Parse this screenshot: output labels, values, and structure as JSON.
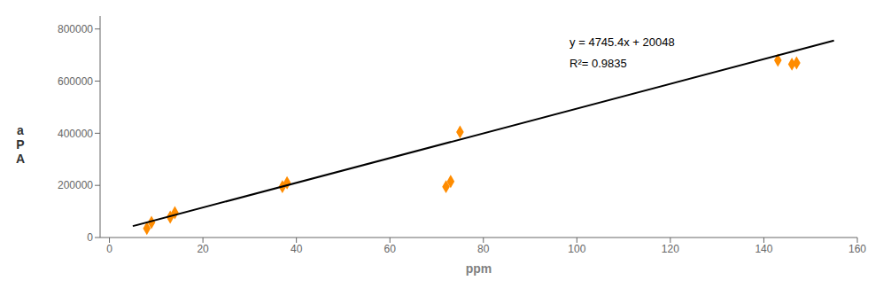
{
  "chart_data": {
    "type": "scatter",
    "xlabel": "ppm",
    "ylabel": "a\nP\nA",
    "xlim": [
      -2,
      160
    ],
    "ylim": [
      0,
      850000
    ],
    "xticks": [
      0,
      20,
      40,
      60,
      80,
      100,
      120,
      140,
      160
    ],
    "yticks": [
      0,
      200000,
      400000,
      600000,
      800000
    ],
    "grid": false,
    "series": [
      {
        "type": "scatter",
        "x": [
          8,
          9,
          13,
          14,
          37,
          38,
          72,
          73,
          75,
          143,
          146,
          147
        ],
        "values": [
          35000,
          58000,
          78000,
          95000,
          195000,
          210000,
          195000,
          215000,
          405000,
          680000,
          665000,
          670000
        ],
        "color": "#FF8C00",
        "marker": "diamond"
      },
      {
        "type": "line",
        "x": [
          5,
          155
        ],
        "values": [
          43775,
          755585
        ],
        "color": "black",
        "line_style": "solid"
      }
    ],
    "annotations": [
      "y = 4745.4x + 20048",
      "R²= 0.9835"
    ]
  }
}
